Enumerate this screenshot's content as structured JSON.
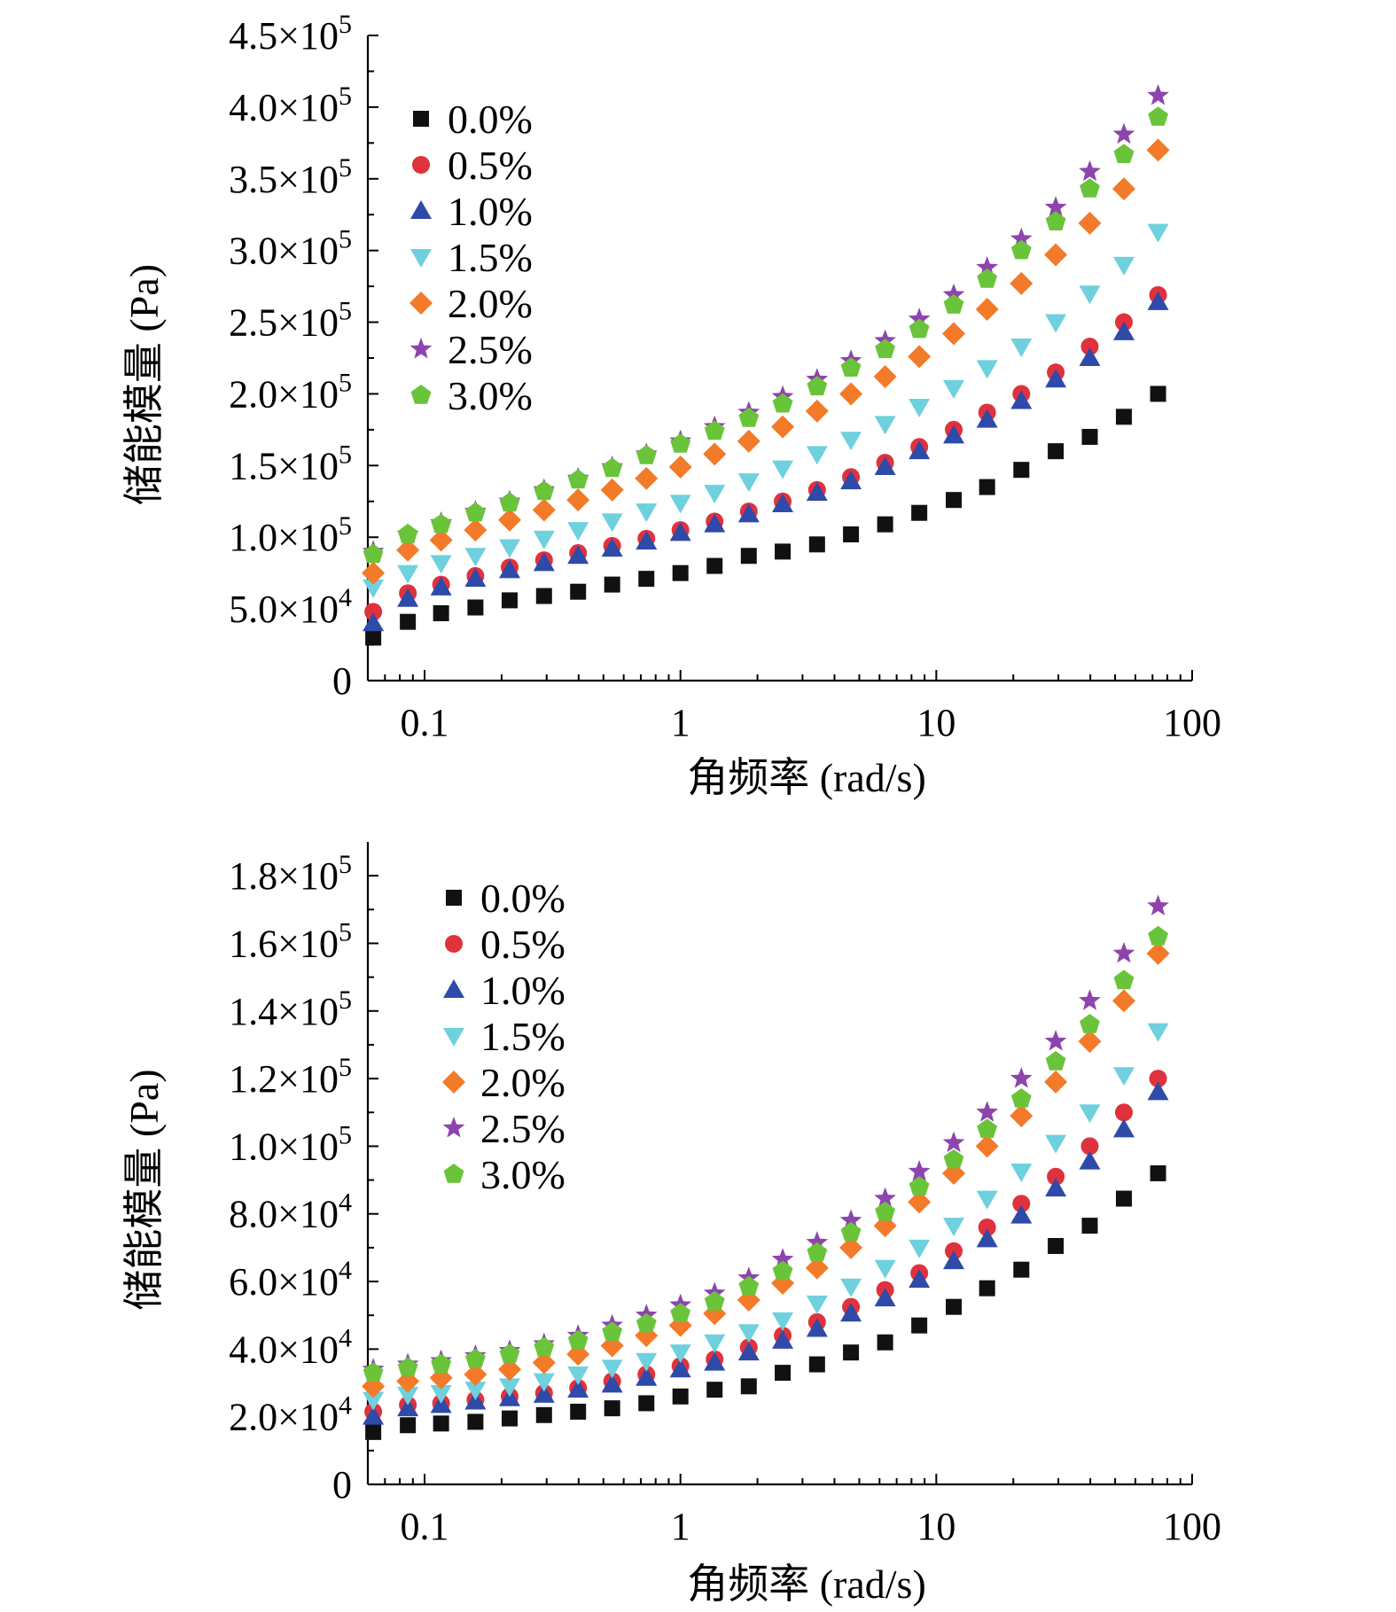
{
  "chart_data": [
    {
      "type": "scatter",
      "xscale": "log",
      "xlim": [
        0.06,
        100
      ],
      "ylim": [
        0,
        450000
      ],
      "xlabel": "角频率 (rad/s)",
      "ylabel": "储能模量 (Pa)",
      "xticks": [
        {
          "value": 0.1,
          "label": "0.1"
        },
        {
          "value": 1,
          "label": "1"
        },
        {
          "value": 10,
          "label": "10"
        },
        {
          "value": 100,
          "label": "100"
        }
      ],
      "yticks": [
        {
          "value": 0,
          "mantissa": "0",
          "exp": ""
        },
        {
          "value": 50000,
          "mantissa": "5.0×10",
          "exp": "4"
        },
        {
          "value": 100000,
          "mantissa": "1.0×10",
          "exp": "5"
        },
        {
          "value": 150000,
          "mantissa": "1.5×10",
          "exp": "5"
        },
        {
          "value": 200000,
          "mantissa": "2.0×10",
          "exp": "5"
        },
        {
          "value": 250000,
          "mantissa": "2.5×10",
          "exp": "5"
        },
        {
          "value": 300000,
          "mantissa": "3.0×10",
          "exp": "5"
        },
        {
          "value": 350000,
          "mantissa": "3.5×10",
          "exp": "5"
        },
        {
          "value": 400000,
          "mantissa": "4.0×10",
          "exp": "5"
        },
        {
          "value": 450000,
          "mantissa": "4.5×10",
          "exp": "5"
        }
      ],
      "legend_position": "top-left",
      "x": [
        0.063,
        0.086,
        0.116,
        0.158,
        0.215,
        0.293,
        0.398,
        0.541,
        0.736,
        1.0,
        1.36,
        1.85,
        2.51,
        3.42,
        4.64,
        6.31,
        8.58,
        11.7,
        15.8,
        21.5,
        29.3,
        39.8,
        54.1,
        73.6
      ],
      "series": [
        {
          "name": "0.0%",
          "marker": "square",
          "color": "#111111",
          "values": [
            30000,
            41000,
            47000,
            51000,
            56000,
            59000,
            62000,
            67000,
            71000,
            75000,
            80000,
            87000,
            90000,
            95000,
            102000,
            109000,
            117000,
            126000,
            135000,
            147000,
            160000,
            170000,
            184000,
            200000
          ]
        },
        {
          "name": "0.5%",
          "marker": "circle",
          "color": "#e0323c",
          "values": [
            48000,
            61000,
            67000,
            73000,
            79000,
            84000,
            89000,
            94000,
            99000,
            105000,
            111000,
            118000,
            125000,
            133000,
            142000,
            152000,
            163000,
            175000,
            187000,
            200000,
            215000,
            233000,
            250000,
            269000
          ]
        },
        {
          "name": "1.0%",
          "marker": "triangle-up",
          "color": "#2f4aa8",
          "values": [
            40000,
            57000,
            65000,
            71000,
            77000,
            82000,
            87000,
            92000,
            97000,
            103000,
            109000,
            116000,
            123000,
            131000,
            139000,
            149000,
            160000,
            171000,
            182000,
            195000,
            210000,
            225000,
            243000,
            264000
          ]
        },
        {
          "name": "1.5%",
          "marker": "triangle-down",
          "color": "#6fd0de",
          "values": [
            65000,
            75000,
            82000,
            87000,
            93000,
            99000,
            105000,
            111000,
            118000,
            124000,
            131000,
            139000,
            148000,
            158000,
            168000,
            179000,
            191000,
            204000,
            218000,
            233000,
            250000,
            270000,
            290000,
            313000
          ]
        },
        {
          "name": "2.0%",
          "marker": "diamond",
          "color": "#f27a28",
          "values": [
            75000,
            91000,
            98000,
            105000,
            112000,
            119000,
            126000,
            133000,
            141000,
            149000,
            158000,
            167000,
            177000,
            188000,
            200000,
            212000,
            226000,
            242000,
            259000,
            277000,
            297000,
            319000,
            343000,
            370000
          ]
        },
        {
          "name": "2.5%",
          "marker": "star",
          "color": "#8e44ad",
          "values": [
            90000,
            102000,
            110000,
            118000,
            125000,
            133000,
            141000,
            149000,
            158000,
            167000,
            177000,
            187000,
            198000,
            210000,
            223000,
            237000,
            252000,
            269000,
            288000,
            308000,
            330000,
            355000,
            381000,
            408000
          ]
        },
        {
          "name": "3.0%",
          "marker": "pentagon",
          "color": "#6ac43a",
          "values": [
            88000,
            102000,
            109000,
            117000,
            124000,
            132000,
            140000,
            148000,
            157000,
            165000,
            174000,
            183000,
            193000,
            205000,
            218000,
            231000,
            245000,
            262000,
            280000,
            300000,
            320000,
            343000,
            367000,
            393000
          ]
        }
      ]
    },
    {
      "type": "scatter",
      "xscale": "log",
      "xlim": [
        0.06,
        100
      ],
      "ylim": [
        0,
        190000
      ],
      "xlabel": "角频率 (rad/s)",
      "ylabel": "储能模量 (Pa)",
      "xticks": [
        {
          "value": 0.1,
          "label": "0.1"
        },
        {
          "value": 1,
          "label": "1"
        },
        {
          "value": 10,
          "label": "10"
        },
        {
          "value": 100,
          "label": "100"
        }
      ],
      "yticks": [
        {
          "value": 0,
          "mantissa": "0",
          "exp": ""
        },
        {
          "value": 20000,
          "mantissa": "2.0×10",
          "exp": "4"
        },
        {
          "value": 40000,
          "mantissa": "4.0×10",
          "exp": "4"
        },
        {
          "value": 60000,
          "mantissa": "6.0×10",
          "exp": "4"
        },
        {
          "value": 80000,
          "mantissa": "8.0×10",
          "exp": "4"
        },
        {
          "value": 100000,
          "mantissa": "1.0×10",
          "exp": "5"
        },
        {
          "value": 120000,
          "mantissa": "1.2×10",
          "exp": "5"
        },
        {
          "value": 140000,
          "mantissa": "1.4×10",
          "exp": "5"
        },
        {
          "value": 160000,
          "mantissa": "1.6×10",
          "exp": "5"
        },
        {
          "value": 180000,
          "mantissa": "1.8×10",
          "exp": "5"
        }
      ],
      "legend_position": "top-left",
      "x": [
        0.063,
        0.086,
        0.116,
        0.158,
        0.215,
        0.293,
        0.398,
        0.541,
        0.736,
        1.0,
        1.36,
        1.85,
        2.51,
        3.42,
        4.64,
        6.31,
        8.58,
        11.7,
        15.8,
        21.5,
        29.3,
        39.8,
        54.1,
        73.6
      ],
      "series": [
        {
          "name": "0.0%",
          "marker": "square",
          "color": "#111111",
          "values": [
            15500,
            17500,
            18000,
            18500,
            19500,
            20500,
            21500,
            22500,
            24000,
            26000,
            28000,
            29000,
            33000,
            35500,
            39000,
            42000,
            47000,
            52500,
            58000,
            63500,
            70500,
            76500,
            84500,
            92000
          ]
        },
        {
          "name": "0.5%",
          "marker": "circle",
          "color": "#e0323c",
          "values": [
            21500,
            23500,
            24000,
            25000,
            26000,
            27000,
            28500,
            30500,
            32500,
            35000,
            37000,
            40500,
            44000,
            48000,
            52500,
            57500,
            62500,
            69000,
            76000,
            83000,
            91000,
            100000,
            110000,
            120000
          ]
        },
        {
          "name": "1.0%",
          "marker": "triangle-up",
          "color": "#2f4aa8",
          "values": [
            20000,
            22500,
            23500,
            24500,
            25500,
            26500,
            28000,
            29500,
            31500,
            34000,
            36000,
            39000,
            42500,
            46000,
            50500,
            55000,
            60500,
            66000,
            72500,
            79500,
            87500,
            95500,
            105000,
            116000
          ]
        },
        {
          "name": "1.5%",
          "marker": "triangle-down",
          "color": "#6fd0de",
          "values": [
            25000,
            26500,
            27000,
            28000,
            29000,
            30500,
            32500,
            34500,
            36500,
            39000,
            42000,
            45000,
            48500,
            53500,
            58500,
            64000,
            70000,
            76500,
            84500,
            92500,
            101000,
            110000,
            121000,
            134000
          ]
        },
        {
          "name": "2.0%",
          "marker": "diamond",
          "color": "#f27a28",
          "values": [
            29000,
            30500,
            31500,
            32500,
            34000,
            36000,
            38500,
            41000,
            44000,
            47000,
            50500,
            54500,
            59500,
            64000,
            70000,
            76500,
            83500,
            92000,
            100000,
            109000,
            119000,
            131000,
            143000,
            157000
          ]
        },
        {
          "name": "2.5%",
          "marker": "star",
          "color": "#8e44ad",
          "values": [
            34000,
            35500,
            36500,
            38000,
            39500,
            41500,
            44000,
            47000,
            50000,
            53000,
            56500,
            61000,
            66500,
            71500,
            78000,
            84500,
            92500,
            101000,
            110000,
            120000,
            131000,
            143000,
            157000,
            171000
          ]
        },
        {
          "name": "3.0%",
          "marker": "pentagon",
          "color": "#6ac43a",
          "values": [
            33000,
            34500,
            35500,
            37000,
            38500,
            40500,
            42500,
            45000,
            47500,
            50500,
            54000,
            58500,
            63000,
            68500,
            74500,
            80500,
            88000,
            96000,
            105000,
            114000,
            125000,
            136000,
            149000,
            162000
          ]
        }
      ]
    }
  ]
}
